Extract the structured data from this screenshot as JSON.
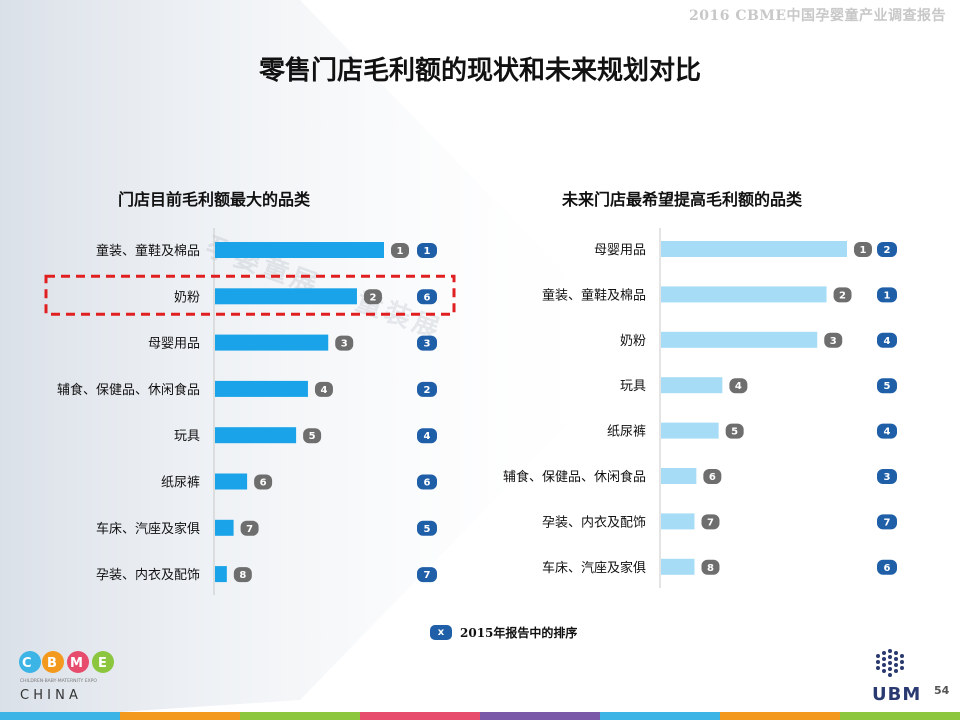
{
  "header": {
    "report_title": "2016 CBME中国孕婴童产业调查报告",
    "main_title": "零售门店毛利额的现状和未来规划对比",
    "page_number": "54"
  },
  "colors": {
    "bar_left": "#1aa3e8",
    "bar_right": "#a6dcf5",
    "rank_2016_badge": "#6e6e6e",
    "rank_2015_badge": "#1f5fa8",
    "highlight_box": "#e02020"
  },
  "chart_data": [
    {
      "type": "bar",
      "orientation": "horizontal",
      "title": "门店目前毛利额最大的品类",
      "categories": [
        "童装、童鞋及棉品",
        "奶粉",
        "母婴用品",
        "辅食、保健品、休闲食品",
        "玩具",
        "纸尿裤",
        "车床、汽座及家俱",
        "孕装、内衣及配饰"
      ],
      "values": [
        100,
        84,
        67,
        55,
        48,
        19,
        11,
        7
      ],
      "rank_2016": [
        "1",
        "2",
        "3",
        "4",
        "5",
        "6",
        "7",
        "8"
      ],
      "rank_2015": [
        "1",
        "6",
        "3",
        "2",
        "4",
        "6",
        "5",
        "7"
      ],
      "highlighted_category": "奶粉"
    },
    {
      "type": "bar",
      "orientation": "horizontal",
      "title": "未来门店最希望提高毛利额的品类",
      "categories": [
        "母婴用品",
        "童装、童鞋及棉品",
        "奶粉",
        "玩具",
        "纸尿裤",
        "辅食、保健品、休闲食品",
        "孕装、内衣及配饰",
        "车床、汽座及家俱"
      ],
      "values": [
        100,
        89,
        84,
        33,
        31,
        19,
        18,
        18
      ],
      "rank_2016": [
        "1",
        "2",
        "3",
        "4",
        "5",
        "6",
        "7",
        "8"
      ],
      "rank_2015": [
        "2",
        "1",
        "4",
        "5",
        "4",
        "3",
        "7",
        "6"
      ]
    }
  ],
  "legend": {
    "badge": "x",
    "text": "2015年报告中的排序"
  },
  "logos": {
    "cbme_letters": "CBME",
    "cbme_small": "CHILDREN·BABY·MATERNITY EXPO",
    "cbme_china": "C H I N A",
    "ubm": "UBM"
  },
  "watermark": "孕婴童展 · 童装展"
}
